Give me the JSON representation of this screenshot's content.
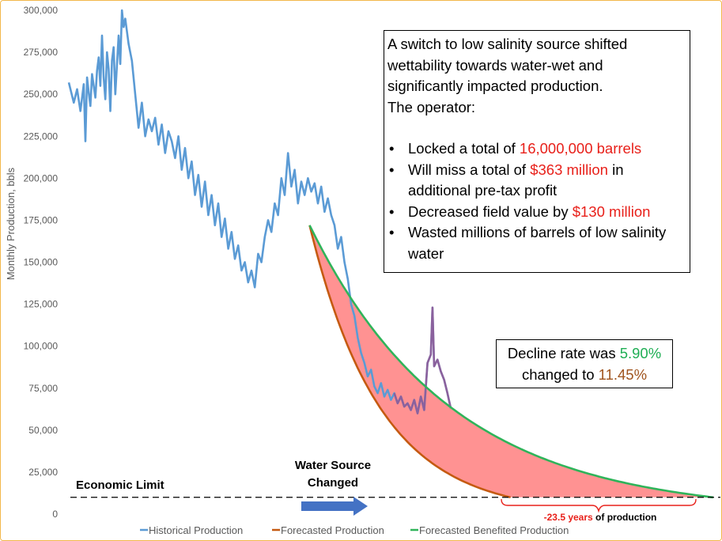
{
  "chart_data": {
    "type": "line",
    "ylabel": "Monthly Production, bbls",
    "ylim": [
      0,
      300000
    ],
    "yticks": [
      0,
      25000,
      50000,
      75000,
      100000,
      125000,
      150000,
      175000,
      200000,
      225000,
      250000,
      275000,
      300000
    ],
    "ytick_labels": [
      "0",
      "25,000",
      "50,000",
      "75,000",
      "100,000",
      "125,000",
      "150,000",
      "175,000",
      "200,000",
      "225,000",
      "250,000",
      "275,000",
      "300,000"
    ],
    "x_months": [
      0,
      390
    ],
    "grid": false,
    "legend_position": "bottom",
    "series": [
      {
        "name": "Historical Production",
        "color": "#5b9bd5",
        "x": [
          0,
          3,
          5,
          7,
          9,
          10,
          11,
          12,
          13,
          14,
          16,
          17,
          18,
          19,
          20,
          21,
          22,
          23,
          24,
          25,
          26,
          27,
          28,
          30,
          31,
          32,
          33,
          34,
          36,
          38,
          40,
          42,
          44,
          46,
          48,
          50,
          52,
          54,
          56,
          58,
          60,
          62,
          64,
          66,
          68,
          70,
          72,
          74,
          76,
          78,
          80,
          82,
          84,
          86,
          88,
          90,
          92,
          94,
          96,
          98,
          100,
          102,
          104,
          106,
          108,
          110,
          112,
          114,
          116,
          118,
          120,
          122,
          124,
          126,
          128,
          130,
          132,
          134,
          136,
          138,
          140,
          142,
          144,
          146,
          148,
          150,
          152,
          154,
          156,
          158,
          160,
          162,
          164,
          166,
          168,
          170,
          172,
          174,
          176,
          178,
          180,
          182,
          184,
          186,
          188,
          190,
          192,
          194,
          196,
          198,
          200,
          202,
          204,
          206,
          208,
          210,
          212,
          214,
          216,
          218,
          219,
          220,
          222,
          224,
          226,
          228,
          230
        ],
        "y": [
          257000,
          245000,
          253000,
          240000,
          256000,
          222000,
          260000,
          251000,
          243000,
          262000,
          248000,
          264000,
          272000,
          255000,
          285000,
          260000,
          247000,
          275000,
          265000,
          240000,
          270000,
          278000,
          250000,
          285000,
          268000,
          300000,
          290000,
          295000,
          280000,
          270000,
          250000,
          230000,
          245000,
          225000,
          235000,
          228000,
          236000,
          220000,
          232000,
          215000,
          228000,
          222000,
          212000,
          225000,
          205000,
          218000,
          200000,
          210000,
          190000,
          202000,
          183000,
          198000,
          178000,
          190000,
          172000,
          185000,
          165000,
          176000,
          158000,
          168000,
          152000,
          160000,
          145000,
          150000,
          138000,
          145000,
          135000,
          155000,
          150000,
          165000,
          175000,
          168000,
          185000,
          178000,
          200000,
          190000,
          215000,
          195000,
          205000,
          185000,
          198000,
          190000,
          200000,
          192000,
          197000,
          185000,
          195000,
          180000,
          188000,
          178000,
          172000,
          158000,
          165000,
          150000,
          140000,
          125000,
          118000,
          105000,
          96000,
          90000,
          82000,
          86000,
          76000,
          72000,
          78000,
          70000,
          74000,
          68000,
          72000,
          66000,
          70000,
          64000,
          66000,
          62000,
          68000,
          60000,
          70000,
          62000,
          90000,
          95000,
          123000,
          88000,
          92000,
          85000,
          80000,
          72000,
          63000
        ]
      },
      {
        "name": "Forecasted Production",
        "color": "#c55a11",
        "x_start": 145,
        "x_end": 266,
        "y_start": 172000,
        "annual_decline": 0.1145,
        "end_value": 10000
      },
      {
        "name": "Forecasted Benefited Production",
        "color": "#2fb45a",
        "x_start": 145,
        "x_end": 388,
        "y_start": 172000,
        "annual_decline": 0.059,
        "end_value": 10000
      }
    ],
    "economic_limit": 10000,
    "water_source_changed_month": 145
  },
  "annotations": {
    "economic_limit_label": "Economic Limit",
    "water_source_line1": "Water Source",
    "water_source_line2": "Changed",
    "years_value": "-23.5 years",
    "years_suffix": " of production"
  },
  "info_box": {
    "lines": [
      "A switch to low salinity source shifted",
      "wettability towards water-wet and",
      "significantly impacted production.",
      "The operator:"
    ],
    "bullets": [
      {
        "pre": "Locked a total of ",
        "highlight": "16,000,000 barrels",
        "post": ""
      },
      {
        "pre": "Will miss a total of ",
        "highlight": "$363 million",
        "post": " in additional pre-tax profit"
      },
      {
        "pre": "Decreased field value by ",
        "highlight": "$130 million",
        "post": ""
      },
      {
        "pre": "Wasted millions of barrels of low salinity water",
        "highlight": "",
        "post": ""
      }
    ]
  },
  "decline_box": {
    "line1_pre": "Decline rate was ",
    "old_rate": "5.90%",
    "line2_pre": "changed to ",
    "new_rate": "11.45%"
  },
  "colors": {
    "historical": "#5b9bd5",
    "forecast": "#c55a11",
    "benefited": "#2fb45a",
    "fill": "#ff7f7f",
    "arrow": "#4472c4",
    "highlight_red": "#e8201a"
  }
}
